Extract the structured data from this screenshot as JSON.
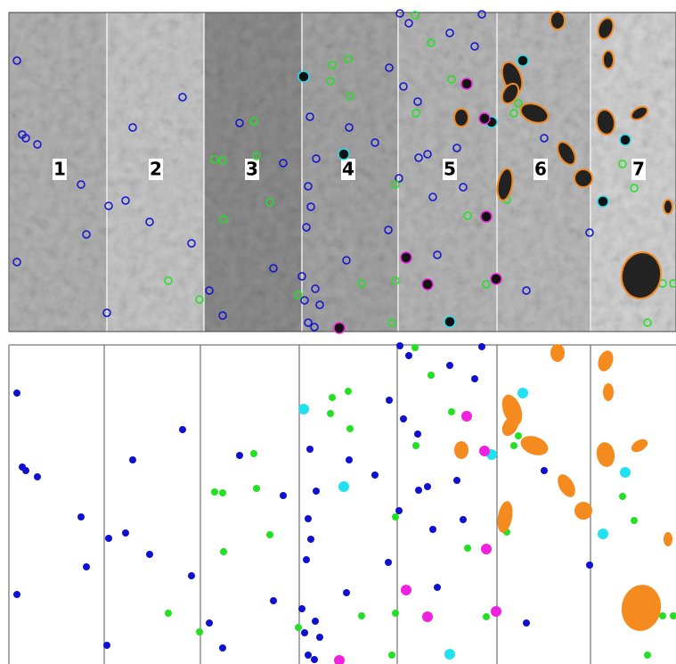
{
  "panels": [
    {
      "label": "1"
    },
    {
      "label": "2"
    },
    {
      "label": "3"
    },
    {
      "label": "4"
    },
    {
      "label": "5"
    },
    {
      "label": "6"
    },
    {
      "label": "7"
    }
  ]
}
